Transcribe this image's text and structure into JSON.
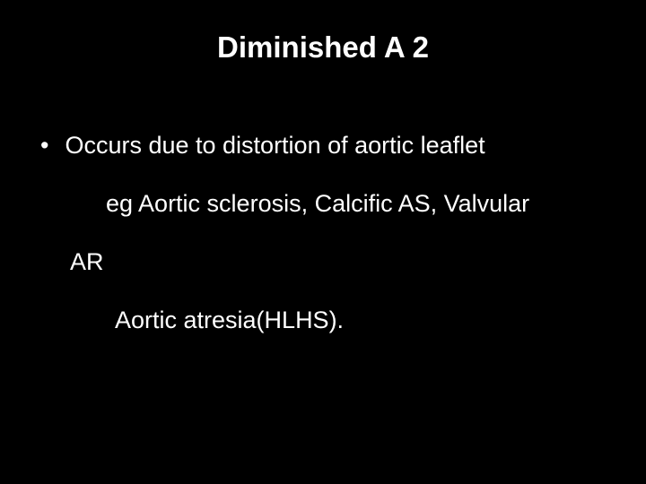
{
  "slide": {
    "title": "Diminished A 2",
    "bullet_symbol": "•",
    "line1": "Occurs due to distortion of aortic leaflet",
    "line2": "eg Aortic sclerosis, Calcific  AS, Valvular",
    "line3": "AR",
    "line4": "Aortic atresia(HLHS).",
    "background_color": "#000000",
    "text_color": "#ffffff",
    "title_fontsize": 33,
    "body_fontsize": 27,
    "font_family": "Arial"
  }
}
